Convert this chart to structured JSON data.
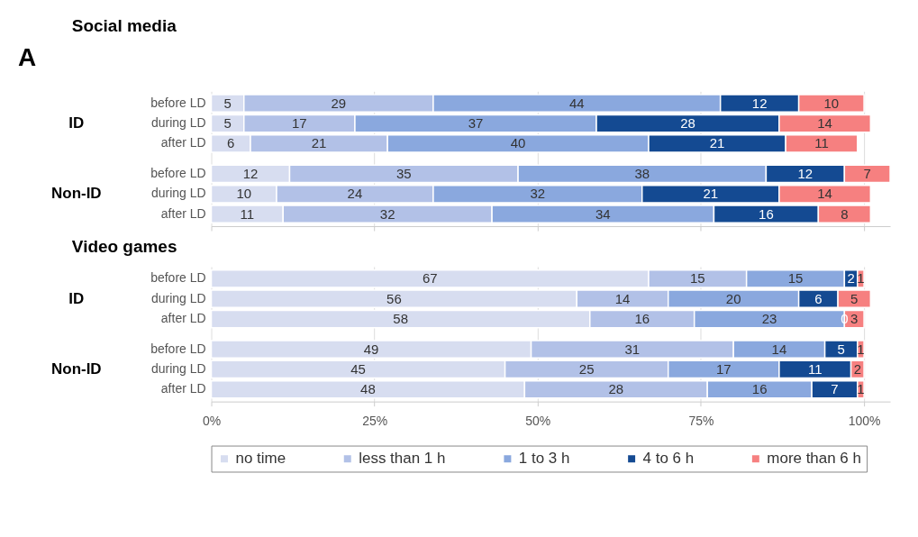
{
  "chart_data": [
    {
      "type": "bar",
      "orientation": "horizontal",
      "stacked": true,
      "title": "Social media",
      "categories": [
        "before LD",
        "during LD",
        "after LD",
        "before LD",
        "during LD",
        "after LD"
      ],
      "series": [
        {
          "color": "#d7ddf0",
          "values": [
            5,
            5,
            6,
            12,
            10,
            11
          ]
        },
        {
          "color": "#b2c1e7",
          "values": [
            29,
            17,
            21,
            35,
            24,
            32
          ]
        },
        {
          "color": "#8aa8de",
          "values": [
            44,
            37,
            40,
            38,
            32,
            34
          ]
        },
        {
          "color": "#144a92",
          "values": [
            12,
            28,
            21,
            12,
            21,
            16
          ]
        },
        {
          "color": "#f68080",
          "values": [
            10,
            14,
            11,
            7,
            14,
            8
          ]
        }
      ],
      "xlim": [
        0,
        104
      ],
      "xticks": [
        0,
        25,
        50,
        75,
        100
      ],
      "grid": "x",
      "data_labels": true,
      "legend": false,
      "tick_labels": "y",
      "annotations": [
        "A",
        "ID",
        "Non-ID"
      ]
    },
    {
      "type": "bar",
      "orientation": "horizontal",
      "stacked": true,
      "title": "Video games",
      "categories": [
        "before LD",
        "during LD",
        "after LD",
        "before LD",
        "during LD",
        "after LD"
      ],
      "series": [
        {
          "name": "no time",
          "color": "#d7ddf0",
          "values": [
            67,
            56,
            58,
            49,
            45,
            48
          ]
        },
        {
          "name": "less than 1 h",
          "color": "#b2c1e7",
          "values": [
            15,
            14,
            16,
            31,
            25,
            28
          ]
        },
        {
          "name": "1 to 3 h",
          "color": "#8aa8de",
          "values": [
            15,
            20,
            23,
            14,
            17,
            16
          ]
        },
        {
          "name": "4 to 6 h",
          "color": "#144a92",
          "values": [
            2,
            6,
            0,
            5,
            11,
            7
          ]
        },
        {
          "name": "more than 6 h",
          "color": "#f68080",
          "values": [
            1,
            5,
            3,
            1,
            2,
            1
          ]
        }
      ],
      "xlim": [
        0,
        104
      ],
      "xticks": [
        {
          "value": 0,
          "label": "0%"
        },
        {
          "value": 25,
          "label": "25%"
        },
        {
          "value": 50,
          "label": "50%"
        },
        {
          "value": 75,
          "label": "75%"
        },
        {
          "value": 100,
          "label": "100%"
        }
      ],
      "grid": "x",
      "data_labels": true,
      "legend": "bottom",
      "annotations": [
        "ID",
        "Non-ID"
      ]
    }
  ]
}
